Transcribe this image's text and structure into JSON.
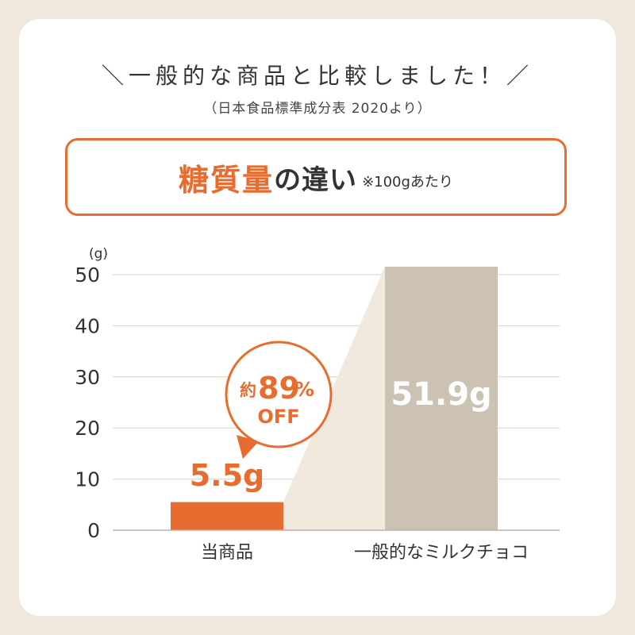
{
  "header": {
    "headline": "＼一般的な商品と比較しました！／",
    "source": "（日本食品標準成分表 2020より）"
  },
  "title_box": {
    "accent": "糖質量",
    "main": "の違い",
    "note": "※100gあたり"
  },
  "badge": {
    "prefix": "約",
    "value": "89",
    "unit": "%",
    "suffix": "OFF"
  },
  "colors": {
    "accent": "#e66d2f",
    "comparison": "#cbc2b3",
    "background": "#f1e9de"
  },
  "chart_data": {
    "type": "bar",
    "unit_label": "(g)",
    "categories": [
      "当商品",
      "一般的なミルクチョコ"
    ],
    "values": [
      5.5,
      51.9
    ],
    "value_labels": [
      "5.5g",
      "51.9g"
    ],
    "ylim": [
      0,
      50
    ],
    "yticks": [
      0,
      10,
      20,
      30,
      40,
      50
    ],
    "grid": true
  }
}
